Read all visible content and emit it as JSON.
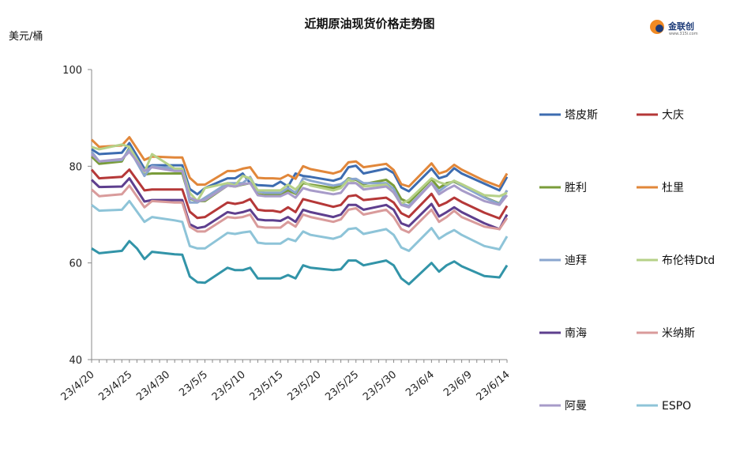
{
  "chart_data": {
    "type": "line",
    "title": "近期原油现货价格走势图",
    "ylabel": "美元/桶",
    "xlabel": "",
    "ylim": [
      40,
      100
    ],
    "yticks": [
      40,
      60,
      80,
      100
    ],
    "x_tick_labels": [
      "23/4/20",
      "23/4/25",
      "23/4/30",
      "23/5/5",
      "23/5/10",
      "23/5/15",
      "23/5/20",
      "23/5/25",
      "23/5/30",
      "23/6/4",
      "23/6/9",
      "23/6/14"
    ],
    "x_tick_dates": [
      0,
      5,
      10,
      15,
      20,
      25,
      30,
      35,
      40,
      45,
      50,
      55
    ],
    "x_range": [
      0,
      55
    ],
    "grid": false,
    "legend_position": "right",
    "series": [
      {
        "name": "塔皮斯",
        "color": "#3d6cb0",
        "x": [
          0,
          1,
          4,
          5,
          7,
          8,
          11,
          12,
          13,
          14,
          15,
          18,
          19,
          20,
          21,
          22,
          23,
          24,
          25,
          26,
          27,
          28,
          29,
          32,
          33,
          34,
          35,
          36,
          39,
          40,
          41,
          42,
          45,
          46,
          47,
          48,
          49,
          52,
          54,
          55
        ],
        "y": [
          83.5,
          82.5,
          82.8,
          84.8,
          79.5,
          80.2,
          80.2,
          80.2,
          75.3,
          74.2,
          75.5,
          77.5,
          77.5,
          78.5,
          76.5,
          76.1,
          76,
          75.9,
          76.8,
          75.8,
          78.5,
          78,
          77.8,
          77,
          77.5,
          79.8,
          80.1,
          78.5,
          79.5,
          78.6,
          75.6,
          74.8,
          79.5,
          77.5,
          78,
          79.6,
          78.5,
          76.4,
          75,
          77.8
        ]
      },
      {
        "name": "大庆",
        "color": "#b53838",
        "x": [
          0,
          1,
          4,
          5,
          7,
          8,
          11,
          12,
          13,
          14,
          15,
          18,
          19,
          20,
          21,
          22,
          23,
          24,
          25,
          26,
          27,
          28,
          29,
          32,
          33,
          34,
          35,
          36,
          39,
          40,
          41,
          42,
          45,
          46,
          47,
          48,
          49,
          52,
          54,
          55
        ],
        "y": [
          79.3,
          77.5,
          77.8,
          79.3,
          75,
          75.2,
          75.2,
          75.2,
          70.6,
          69.3,
          69.5,
          72.5,
          72.2,
          72.5,
          73.2,
          71,
          70.8,
          70.8,
          70.5,
          71.5,
          70.5,
          73.2,
          72.8,
          71.6,
          72,
          73.8,
          74,
          73,
          73.5,
          72.5,
          70.3,
          69.5,
          74.3,
          71.8,
          72.5,
          73.5,
          72.6,
          70.4,
          69.2,
          71.8
        ]
      },
      {
        "name": "胜利",
        "color": "#7a9c3a",
        "x": [
          0,
          1,
          4,
          5,
          7,
          8,
          11,
          12,
          13,
          14,
          15,
          18,
          19,
          20,
          21,
          22,
          23,
          24,
          25,
          26,
          27,
          28,
          29,
          32,
          33,
          34,
          35,
          36,
          39,
          40,
          41,
          42,
          45,
          46,
          47,
          48,
          49,
          52,
          54,
          55
        ],
        "y": [
          82,
          80.5,
          81,
          83.8,
          78.3,
          78.5,
          78.5,
          78.5,
          73.3,
          72.8,
          72.8,
          76,
          75.8,
          76.2,
          76.5,
          74.2,
          74,
          74,
          74,
          75,
          74.3,
          76.5,
          76.2,
          75.5,
          76,
          77.5,
          77.2,
          76.3,
          77.2,
          76,
          73.2,
          72.5,
          77.3,
          75.5,
          76.5,
          76.8,
          76,
          73.6,
          72.3,
          75
        ]
      },
      {
        "name": "杜里",
        "color": "#e1873a",
        "x": [
          0,
          1,
          4,
          5,
          7,
          8,
          11,
          12,
          13,
          14,
          15,
          18,
          19,
          20,
          21,
          22,
          23,
          24,
          25,
          26,
          27,
          28,
          29,
          32,
          33,
          34,
          35,
          36,
          39,
          40,
          41,
          42,
          45,
          46,
          47,
          48,
          49,
          52,
          54,
          55
        ],
        "y": [
          85.5,
          84,
          84.3,
          86,
          81.3,
          82,
          81.8,
          81.8,
          77.6,
          76.2,
          76.2,
          79,
          79,
          79.5,
          79.8,
          77.6,
          77.5,
          77.5,
          77.4,
          78.2,
          77.4,
          80,
          79.4,
          78.5,
          79,
          80.8,
          81,
          79.8,
          80.5,
          79.2,
          76.3,
          75.8,
          80.6,
          78.5,
          79,
          80.3,
          79.3,
          77,
          75.8,
          78.5
        ]
      },
      {
        "name": "迪拜",
        "color": "#8aa6cf",
        "x": [
          0,
          1,
          4,
          5,
          7,
          8,
          11,
          12,
          13,
          14,
          15,
          18,
          19,
          20,
          21,
          22,
          23,
          24,
          25,
          26,
          27,
          28,
          29,
          32,
          33,
          34,
          35,
          36,
          39,
          40,
          41,
          42,
          45,
          46,
          47,
          48,
          49,
          52,
          54,
          55
        ],
        "y": [
          83,
          81,
          81.3,
          83.5,
          78,
          80,
          79.5,
          79.5,
          72.5,
          72.5,
          73.5,
          76.5,
          76.5,
          76.5,
          77.8,
          74.8,
          74.5,
          74.5,
          74.5,
          75.5,
          74.5,
          77.5,
          77,
          76,
          76.3,
          77.3,
          77.4,
          76.5,
          76.5,
          75.3,
          72.3,
          71.8,
          76.5,
          74.8,
          76,
          77,
          76,
          73.5,
          72.2,
          75
        ]
      },
      {
        "name": "布伦特Dtd",
        "color": "#b6d188",
        "x": [
          0,
          1,
          4,
          5,
          7,
          8,
          11,
          12,
          13,
          14,
          15,
          18,
          19,
          20,
          21,
          22,
          23,
          24,
          25,
          26,
          27,
          28,
          29,
          32,
          33,
          34,
          35,
          36,
          39,
          40,
          41,
          42,
          45,
          46,
          47,
          48,
          49,
          52,
          54,
          55
        ],
        "y": [
          84,
          83.5,
          84.5,
          84,
          78.8,
          82.5,
          79.5,
          79.5,
          74.5,
          72.8,
          75.5,
          76.5,
          76,
          78,
          77.5,
          75,
          75,
          75,
          75,
          76.2,
          75.2,
          76.8,
          76,
          75,
          75.5,
          77.2,
          76.5,
          75.8,
          76.2,
          74.5,
          72.3,
          73,
          77.5,
          76.7,
          76.2,
          77,
          76.3,
          74,
          73.8,
          74.5
        ]
      },
      {
        "name": "南海",
        "color": "#5e3f8e",
        "x": [
          0,
          1,
          4,
          5,
          7,
          8,
          11,
          12,
          13,
          14,
          15,
          18,
          19,
          20,
          21,
          22,
          23,
          24,
          25,
          26,
          27,
          28,
          29,
          32,
          33,
          34,
          35,
          36,
          39,
          40,
          41,
          42,
          45,
          46,
          47,
          48,
          49,
          52,
          54,
          55
        ],
        "y": [
          77.2,
          75.7,
          75.8,
          77.5,
          72.7,
          73,
          73,
          73,
          68,
          67.2,
          67.5,
          70.5,
          70.2,
          70.5,
          71,
          69,
          68.8,
          68.8,
          68.7,
          69.5,
          68.5,
          71,
          70.5,
          69.5,
          70,
          72,
          72,
          71,
          72,
          71,
          68.2,
          67.6,
          72.2,
          69.6,
          70.5,
          71.5,
          70.5,
          68.2,
          67,
          70
        ]
      },
      {
        "name": "米纳斯",
        "color": "#d99b9b",
        "x": [
          0,
          1,
          4,
          5,
          7,
          8,
          11,
          12,
          13,
          14,
          15,
          18,
          19,
          20,
          21,
          22,
          23,
          24,
          25,
          26,
          27,
          28,
          29,
          32,
          33,
          34,
          35,
          36,
          39,
          40,
          41,
          42,
          45,
          46,
          47,
          48,
          49,
          52,
          54,
          55
        ],
        "y": [
          75.2,
          73.8,
          74.2,
          76,
          71.5,
          72.8,
          72.5,
          72.5,
          67.5,
          66.5,
          66.5,
          69.5,
          69.3,
          69.5,
          70,
          67.5,
          67.3,
          67.3,
          67.3,
          68.5,
          67.5,
          70,
          69.5,
          68.5,
          69,
          71,
          71.3,
          70,
          71,
          69.5,
          67,
          66.3,
          71,
          68.5,
          69.5,
          70.8,
          69.5,
          67.5,
          67,
          69.3
        ]
      },
      {
        "name": "阿曼",
        "color": "#a79bc9",
        "x": [
          0,
          1,
          4,
          5,
          7,
          8,
          11,
          12,
          13,
          14,
          15,
          18,
          19,
          20,
          21,
          22,
          23,
          24,
          25,
          26,
          27,
          28,
          29,
          32,
          33,
          34,
          35,
          36,
          39,
          40,
          41,
          42,
          45,
          46,
          47,
          48,
          49,
          52,
          54,
          55
        ],
        "y": [
          82.5,
          81,
          81.5,
          83,
          79,
          79.8,
          79,
          79,
          73.5,
          72.8,
          73,
          76,
          75.8,
          76.3,
          76.5,
          74,
          73.8,
          73.8,
          73.8,
          74.5,
          73.5,
          75.5,
          75,
          74.2,
          74.5,
          76.5,
          76.5,
          75.2,
          75.8,
          74.6,
          72,
          71.5,
          76.5,
          74.2,
          75.2,
          76,
          75,
          72.8,
          72,
          74
        ]
      },
      {
        "name": "ESPO",
        "color": "#8ec4d8",
        "x": [
          0,
          1,
          4,
          5,
          7,
          8,
          11,
          12,
          13,
          14,
          15,
          18,
          19,
          20,
          21,
          22,
          23,
          24,
          25,
          26,
          27,
          28,
          29,
          32,
          33,
          34,
          35,
          36,
          39,
          40,
          41,
          42,
          45,
          46,
          47,
          48,
          49,
          52,
          54,
          55
        ],
        "y": [
          72,
          70.8,
          71,
          72.8,
          68.5,
          69.5,
          68.8,
          68.5,
          63.5,
          63,
          63,
          66.2,
          66,
          66.3,
          66.5,
          64.2,
          64,
          64,
          64,
          65,
          64.5,
          66.5,
          65.8,
          65,
          65.5,
          67,
          67.2,
          66,
          67,
          65.8,
          63.2,
          62.5,
          67.2,
          65,
          66,
          66.8,
          65.8,
          63.5,
          62.8,
          65.5
        ]
      },
      {
        "name": "",
        "color": "#3294a8",
        "x": [
          0,
          1,
          4,
          5,
          6,
          7,
          8,
          11,
          12,
          13,
          14,
          15,
          18,
          19,
          20,
          21,
          22,
          23,
          24,
          25,
          26,
          27,
          28,
          29,
          32,
          33,
          34,
          35,
          36,
          39,
          40,
          41,
          42,
          45,
          46,
          47,
          48,
          49,
          52,
          54,
          55
        ],
        "y": [
          63,
          62,
          62.5,
          64.5,
          63,
          60.8,
          62.3,
          61.8,
          61.7,
          57.2,
          56,
          55.9,
          59,
          58.5,
          58.5,
          59,
          56.8,
          56.8,
          56.8,
          56.8,
          57.5,
          56.8,
          59.5,
          59,
          58.5,
          58.7,
          60.5,
          60.5,
          59.5,
          60.5,
          59.5,
          56.8,
          55.6,
          60,
          58.2,
          59.5,
          60.3,
          59.3,
          57.3,
          57,
          59.5
        ]
      }
    ],
    "legend_order": [
      [
        "塔皮斯",
        "大庆"
      ],
      [
        "胜利",
        "杜里"
      ],
      [
        "迪拜",
        "布伦特Dtd"
      ],
      [
        "南海",
        "米纳斯"
      ],
      [
        "阿曼",
        "ESPO"
      ]
    ]
  },
  "logo": {
    "text": "金联创",
    "sub": "www.315i.com"
  }
}
